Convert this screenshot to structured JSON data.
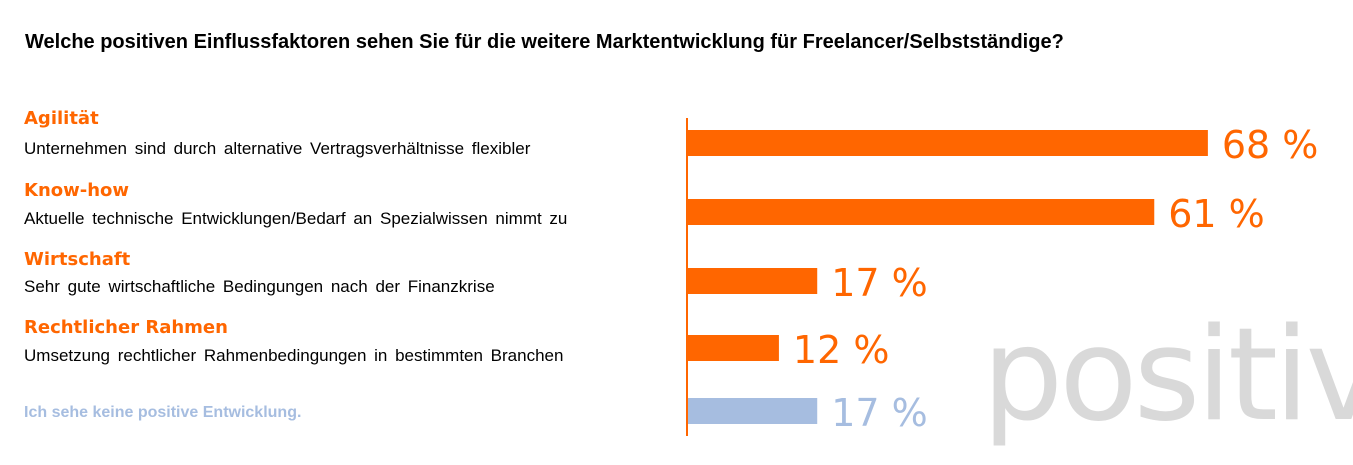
{
  "title": "Welche positiven Einflussfaktoren sehen Sie für die weitere Marktentwicklung für Freelancer/Selbstständige?",
  "watermark": "positiv",
  "colors": {
    "accent": "#ff6600",
    "neutral": "#a6bde0",
    "watermark": "#d9d9d9"
  },
  "items": [
    {
      "label": "Agilität",
      "description": "Unternehmen sind durch alternative Vertragsverhältnisse flexibler"
    },
    {
      "label": "Know-how",
      "description": "Aktuelle technische Entwicklungen/Bedarf an Spezialwissen nimmt zu"
    },
    {
      "label": "Wirtschaft",
      "description": "Sehr gute wirtschaftliche Bedingungen  nach der Finanzkrise"
    },
    {
      "label": "Rechtlicher Rahmen",
      "description": "Umsetzung rechtlicher Rahmenbedingungen in bestimmten Branchen"
    }
  ],
  "no_positive": "Ich sehe keine positive Entwicklung.",
  "chart_data": {
    "type": "bar",
    "orientation": "horizontal",
    "categories": [
      "Agilität",
      "Know-how",
      "Wirtschaft",
      "Rechtlicher Rahmen",
      "Ich sehe keine positive Entwicklung."
    ],
    "values": [
      68,
      61,
      17,
      12,
      17
    ],
    "value_labels": [
      "68 %",
      "61 %",
      "17 %",
      "12 %",
      "17 %"
    ],
    "unit": "%",
    "xlim": [
      0,
      100
    ],
    "grid": false,
    "legend": "none"
  }
}
